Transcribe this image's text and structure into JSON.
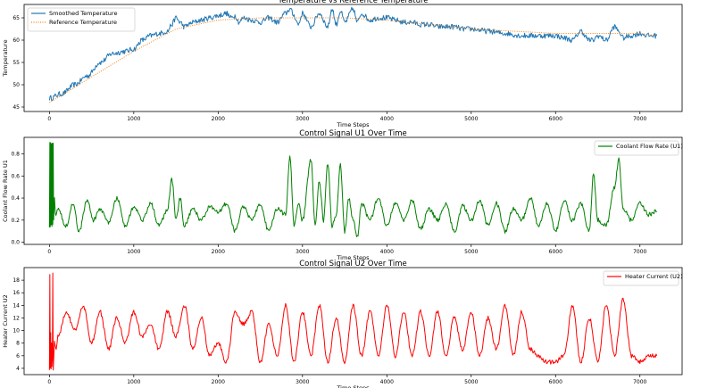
{
  "chart_data": [
    {
      "type": "line",
      "title": "Temperature vs Reference Temperature",
      "xlabel": "Time Steps",
      "ylabel": "Temperature",
      "xlim": [
        -300,
        7500
      ],
      "ylim": [
        44,
        68
      ],
      "xticks": [
        "0",
        "1000",
        "2000",
        "3000",
        "4000",
        "5000",
        "6000",
        "7000"
      ],
      "yticks": [
        "45",
        "50",
        "55",
        "60",
        "65"
      ],
      "legend_position": "top-left",
      "series": [
        {
          "name": "Smoothed Temperature",
          "color": "#1f77b4",
          "style": "solid",
          "noise": 0.6,
          "x": [
            0,
            150,
            300,
            450,
            600,
            750,
            900,
            1000,
            1100,
            1200,
            1300,
            1400,
            1450,
            1500,
            1550,
            1600,
            1650,
            1700,
            1800,
            1900,
            2000,
            2100,
            2150,
            2200,
            2250,
            2300,
            2400,
            2500,
            2600,
            2700,
            2800,
            2850,
            2900,
            2950,
            3000,
            3100,
            3200,
            3300,
            3350,
            3400,
            3450,
            3500,
            3600,
            3650,
            3700,
            3800,
            3900,
            4000,
            4100,
            4200,
            4300,
            4400,
            4500,
            4600,
            4700,
            4800,
            4900,
            5000,
            5200,
            5400,
            5600,
            5800,
            6000,
            6100,
            6200,
            6300,
            6400,
            6450,
            6500,
            6600,
            6700,
            6750,
            6800,
            6900,
            7000,
            7100,
            7200
          ],
          "y": [
            47,
            48,
            50,
            52,
            55,
            57,
            57.5,
            58,
            60,
            61,
            61.5,
            62,
            63.5,
            65,
            64,
            63,
            63.5,
            64,
            64.5,
            65,
            65.5,
            66,
            65,
            65.5,
            64,
            65,
            64.5,
            64,
            65,
            64,
            66,
            67,
            65.5,
            63.5,
            66,
            63,
            66,
            63,
            67,
            63.5,
            66.5,
            64,
            67,
            64,
            66,
            64.5,
            65,
            65,
            64.5,
            64,
            64,
            63.5,
            63.5,
            63,
            63,
            63,
            62.5,
            62.5,
            62,
            61.5,
            61,
            61,
            61,
            60.5,
            60,
            62,
            60,
            60,
            61,
            60,
            63,
            62,
            60.5,
            61,
            61.5,
            61,
            61
          ]
        },
        {
          "name": "Reference Temperature",
          "color": "#ff7f0e",
          "style": "dotted",
          "noise": 0,
          "x": [
            0,
            1000,
            1400,
            1500,
            2000,
            2500,
            3000,
            3500,
            4000,
            4500,
            5000,
            5500,
            6000,
            6500,
            7000,
            7200
          ],
          "y": [
            46,
            57.5,
            61.5,
            62.5,
            64.5,
            65,
            65,
            65,
            64.5,
            63.5,
            62.5,
            62,
            61.5,
            61.5,
            61.5,
            61
          ]
        }
      ]
    },
    {
      "type": "line",
      "title": "Control Signal U1 Over Time",
      "xlabel": "Time Steps",
      "ylabel": "Coolant Flow Rate U1",
      "xlim": [
        -300,
        7500
      ],
      "ylim": [
        -0.02,
        0.95
      ],
      "xticks": [
        "0",
        "1000",
        "2000",
        "3000",
        "4000",
        "5000",
        "6000",
        "7000"
      ],
      "yticks": [
        "0.0",
        "0.2",
        "0.4",
        "0.6",
        "0.8"
      ],
      "legend_position": "top-right",
      "series": [
        {
          "name": "Coolant Flow Rate (U1)",
          "color": "#008000",
          "style": "solid",
          "noise": 0.02,
          "x": [
            0,
            5,
            10,
            15,
            20,
            25,
            30,
            35,
            40,
            45,
            50,
            60,
            70,
            100,
            200,
            280,
            350,
            450,
            520,
            600,
            700,
            800,
            900,
            1000,
            1100,
            1200,
            1300,
            1400,
            1450,
            1500,
            1550,
            1600,
            1700,
            1800,
            1900,
            2000,
            2100,
            2200,
            2300,
            2400,
            2500,
            2600,
            2700,
            2800,
            2850,
            2900,
            2950,
            3000,
            3100,
            3150,
            3200,
            3250,
            3300,
            3350,
            3400,
            3450,
            3500,
            3550,
            3600,
            3650,
            3700,
            3800,
            3900,
            4000,
            4100,
            4200,
            4300,
            4400,
            4500,
            4600,
            4700,
            4800,
            4900,
            5000,
            5100,
            5200,
            5300,
            5400,
            5500,
            5600,
            5700,
            5800,
            5900,
            6000,
            6100,
            6200,
            6300,
            6400,
            6450,
            6500,
            6600,
            6700,
            6750,
            6800,
            6900,
            7000,
            7100,
            7200
          ],
          "y": [
            0.15,
            0.9,
            0.15,
            0.9,
            0.15,
            0.9,
            0.15,
            0.9,
            0.15,
            0.9,
            0.2,
            0.4,
            0.25,
            0.3,
            0.15,
            0.35,
            0.1,
            0.38,
            0.2,
            0.3,
            0.18,
            0.4,
            0.15,
            0.32,
            0.2,
            0.35,
            0.15,
            0.3,
            0.58,
            0.2,
            0.4,
            0.15,
            0.3,
            0.2,
            0.32,
            0.28,
            0.35,
            0.1,
            0.32,
            0.2,
            0.35,
            0.1,
            0.3,
            0.25,
            0.77,
            0.15,
            0.35,
            0.2,
            0.75,
            0.15,
            0.55,
            0.2,
            0.72,
            0.15,
            0.25,
            0.7,
            0.1,
            0.4,
            0.2,
            0.05,
            0.35,
            0.2,
            0.4,
            0.15,
            0.35,
            0.2,
            0.38,
            0.12,
            0.3,
            0.2,
            0.35,
            0.1,
            0.33,
            0.2,
            0.38,
            0.15,
            0.35,
            0.1,
            0.3,
            0.2,
            0.4,
            0.15,
            0.35,
            0.1,
            0.38,
            0.2,
            0.35,
            0.1,
            0.62,
            0.2,
            0.15,
            0.5,
            0.75,
            0.3,
            0.2,
            0.35,
            0.25,
            0.28
          ]
        }
      ]
    },
    {
      "type": "line",
      "title": "Control Signal U2 Over Time",
      "xlabel": "Time Steps",
      "ylabel": "Heater Current U2",
      "xlim": [
        -300,
        7500
      ],
      "ylim": [
        3,
        20
      ],
      "xticks": [
        "0",
        "1000",
        "2000",
        "3000",
        "4000",
        "5000",
        "6000",
        "7000"
      ],
      "yticks": [
        "4",
        "6",
        "8",
        "10",
        "12",
        "14",
        "16",
        "18"
      ],
      "legend_position": "top-right",
      "series": [
        {
          "name": "Heater Current (U2)",
          "color": "#ff0000",
          "style": "solid",
          "noise": 0.35,
          "x": [
            0,
            5,
            10,
            15,
            20,
            25,
            30,
            35,
            40,
            45,
            50,
            60,
            80,
            100,
            200,
            300,
            400,
            500,
            600,
            700,
            800,
            900,
            1000,
            1100,
            1200,
            1300,
            1400,
            1500,
            1600,
            1700,
            1800,
            1900,
            2000,
            2100,
            2200,
            2300,
            2400,
            2500,
            2600,
            2700,
            2800,
            2900,
            3000,
            3100,
            3200,
            3300,
            3400,
            3500,
            3600,
            3700,
            3800,
            3900,
            4000,
            4100,
            4200,
            4300,
            4400,
            4500,
            4600,
            4700,
            4800,
            4900,
            5000,
            5100,
            5200,
            5300,
            5400,
            5500,
            5600,
            5700,
            5800,
            5900,
            6000,
            6100,
            6200,
            6300,
            6400,
            6500,
            6600,
            6700,
            6800,
            6900,
            7000,
            7100,
            7200
          ],
          "y": [
            4,
            19,
            4,
            10,
            4,
            8,
            4,
            6,
            19,
            4,
            5,
            8,
            7,
            9,
            13,
            10,
            14,
            8,
            13,
            7,
            12,
            8,
            13,
            9,
            11,
            7,
            13,
            9,
            14,
            7,
            12,
            6,
            8,
            5,
            13,
            11,
            13,
            5,
            11,
            6,
            14,
            5,
            13,
            6,
            14,
            5,
            12,
            5,
            14,
            6,
            13,
            6,
            14,
            6,
            13,
            6,
            13,
            6,
            13,
            6,
            12,
            7,
            13,
            6,
            12,
            7,
            14,
            6,
            13,
            7,
            6,
            5,
            5,
            6,
            14,
            5,
            12,
            5,
            14,
            6,
            15,
            6,
            5,
            6,
            6
          ]
        }
      ]
    }
  ]
}
